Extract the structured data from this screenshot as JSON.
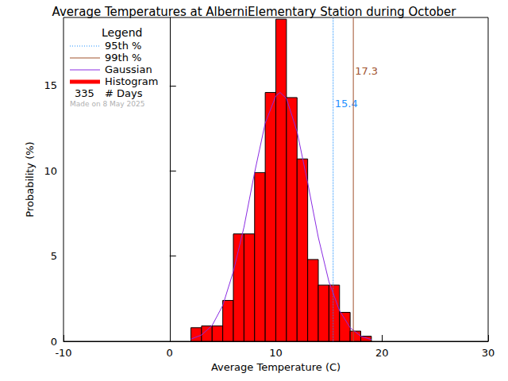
{
  "chart_data": {
    "type": "histogram",
    "title": "Average Temperatures at AlberniElementary Station during October",
    "xlabel": "Average Temperature (C)",
    "ylabel": "Probability (%)",
    "bins": [
      2,
      3,
      4,
      5,
      6,
      7,
      8,
      9,
      10,
      11,
      12,
      13,
      14,
      15,
      16,
      17,
      18,
      19
    ],
    "values": [
      0.8,
      0.9,
      0.9,
      2.4,
      6.3,
      6.3,
      9.9,
      14.6,
      18.9,
      14.3,
      10.7,
      4.8,
      3.3,
      3.3,
      1.7,
      0.6,
      0.3
    ],
    "name": "Histogram",
    "color": "#ff0000",
    "gaussian": {
      "name": "Gaussian",
      "color": "#8a2be2",
      "x": [
        2,
        3,
        4,
        5,
        6,
        7,
        8,
        9,
        10,
        10.4,
        11,
        12,
        13,
        14,
        15,
        16,
        17,
        18,
        19
      ],
      "values": [
        0.13,
        0.37,
        0.93,
        2.1,
        4.1,
        6.7,
        9.9,
        12.8,
        14.4,
        14.6,
        14.25,
        12.3,
        9.3,
        6.1,
        3.5,
        1.8,
        0.8,
        0.3,
        0.1
      ]
    },
    "percentiles": [
      {
        "name": "95th %",
        "value": 15.4,
        "color": "#1e90ff",
        "line_style": "dotted"
      },
      {
        "name": "99th %",
        "value": 17.3,
        "color": "#a0522d",
        "line_style": "solid"
      }
    ],
    "legend_title": "Legend",
    "days": 335,
    "days_label": "# Days",
    "note": "Made on 8 May 2025",
    "legend": "upper left",
    "xlim": [
      -10,
      30
    ],
    "xticks": [
      -10,
      0,
      10,
      20,
      30
    ],
    "ylim": [
      0,
      19
    ],
    "yticks": [
      0,
      5,
      10,
      15
    ],
    "grid": false
  }
}
